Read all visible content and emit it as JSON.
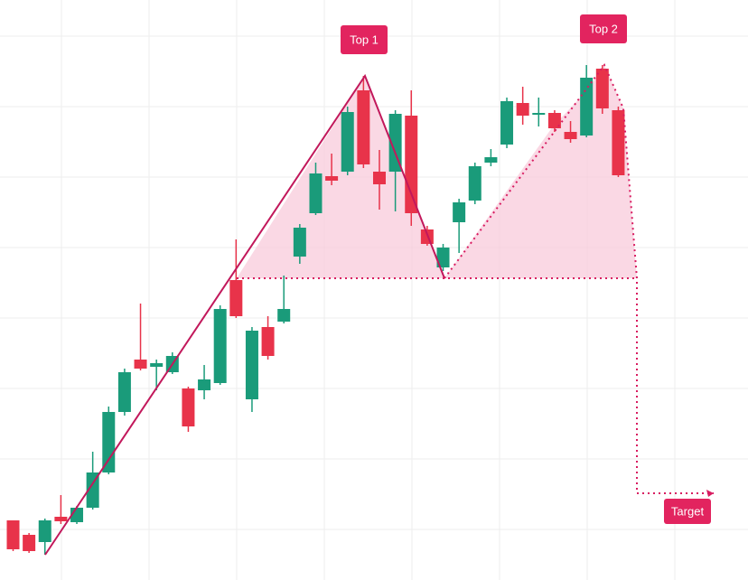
{
  "chart_data": {
    "type": "candlestick",
    "annotations": [
      "Top 1",
      "Top 2",
      "Target"
    ],
    "ylim": [
      0,
      642
    ],
    "colors": {
      "up": "#1a9b7a",
      "down": "#e8334a"
    },
    "open": [
      66,
      50,
      42,
      70,
      64,
      80,
      119,
      186,
      244,
      236,
      230,
      212,
      210,
      218,
      332,
      200,
      280,
      286,
      358,
      406,
      447,
      452,
      542,
      452,
      452,
      514,
      388,
      346,
      396,
      420,
      462,
      482,
      528,
      515,
      517,
      496,
      492,
      566,
      520
    ],
    "high": [
      66,
      52,
      68,
      94,
      82,
      142,
      192,
      234,
      306,
      244,
      252,
      214,
      238,
      304,
      377,
      280,
      292,
      337,
      394,
      462,
      472,
      524,
      558,
      476,
      520,
      542,
      392,
      372,
      422,
      462,
      477,
      534,
      546,
      534,
      520,
      508,
      570,
      570,
      524
    ],
    "low": [
      32,
      30,
      28,
      62,
      62,
      78,
      117,
      182,
      232,
      210,
      228,
      164,
      200,
      216,
      290,
      186,
      244,
      284,
      350,
      404,
      437,
      448,
      456,
      410,
      408,
      392,
      370,
      342,
      362,
      416,
      458,
      478,
      504,
      502,
      496,
      484,
      490,
      516,
      446
    ],
    "close": [
      34,
      32,
      66,
      65,
      80,
      119,
      186,
      230,
      234,
      240,
      248,
      170,
      222,
      300,
      292,
      276,
      248,
      300,
      390,
      450,
      442,
      518,
      460,
      438,
      516,
      406,
      372,
      368,
      418,
      458,
      468,
      530,
      514,
      517,
      500,
      488,
      556,
      522,
      448
    ]
  }
}
